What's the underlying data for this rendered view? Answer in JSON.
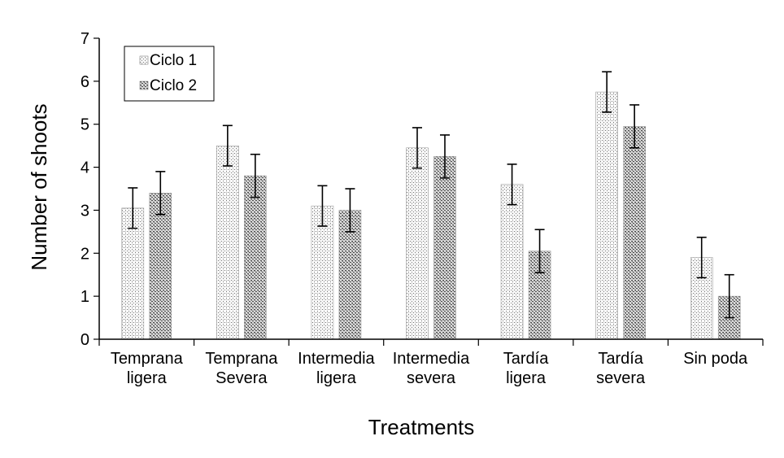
{
  "chart_data": {
    "type": "bar",
    "title": "",
    "xlabel": "Treatments",
    "ylabel": "Number of shoots",
    "ylim": [
      0,
      7
    ],
    "yticks": [
      0,
      1,
      2,
      3,
      4,
      5,
      6,
      7
    ],
    "categories": [
      [
        "Temprana",
        "ligera"
      ],
      [
        "Temprana",
        "Severa"
      ],
      [
        "Intermedia",
        "ligera"
      ],
      [
        "Intermedia",
        "severa"
      ],
      [
        "Tardía",
        "ligera"
      ],
      [
        "Tardía",
        "severa"
      ],
      [
        "Sin poda"
      ]
    ],
    "series": [
      {
        "name": "Ciclo 1",
        "values": [
          3.05,
          4.5,
          3.1,
          4.45,
          3.6,
          5.75,
          1.9
        ],
        "errors": [
          0.47,
          0.47,
          0.47,
          0.47,
          0.47,
          0.47,
          0.47
        ]
      },
      {
        "name": "Ciclo 2",
        "values": [
          3.4,
          3.8,
          3.0,
          4.25,
          2.05,
          4.95,
          1.0
        ],
        "errors": [
          0.5,
          0.5,
          0.5,
          0.5,
          0.5,
          0.5,
          0.5
        ]
      }
    ],
    "legend": {
      "position": "top-left"
    }
  }
}
